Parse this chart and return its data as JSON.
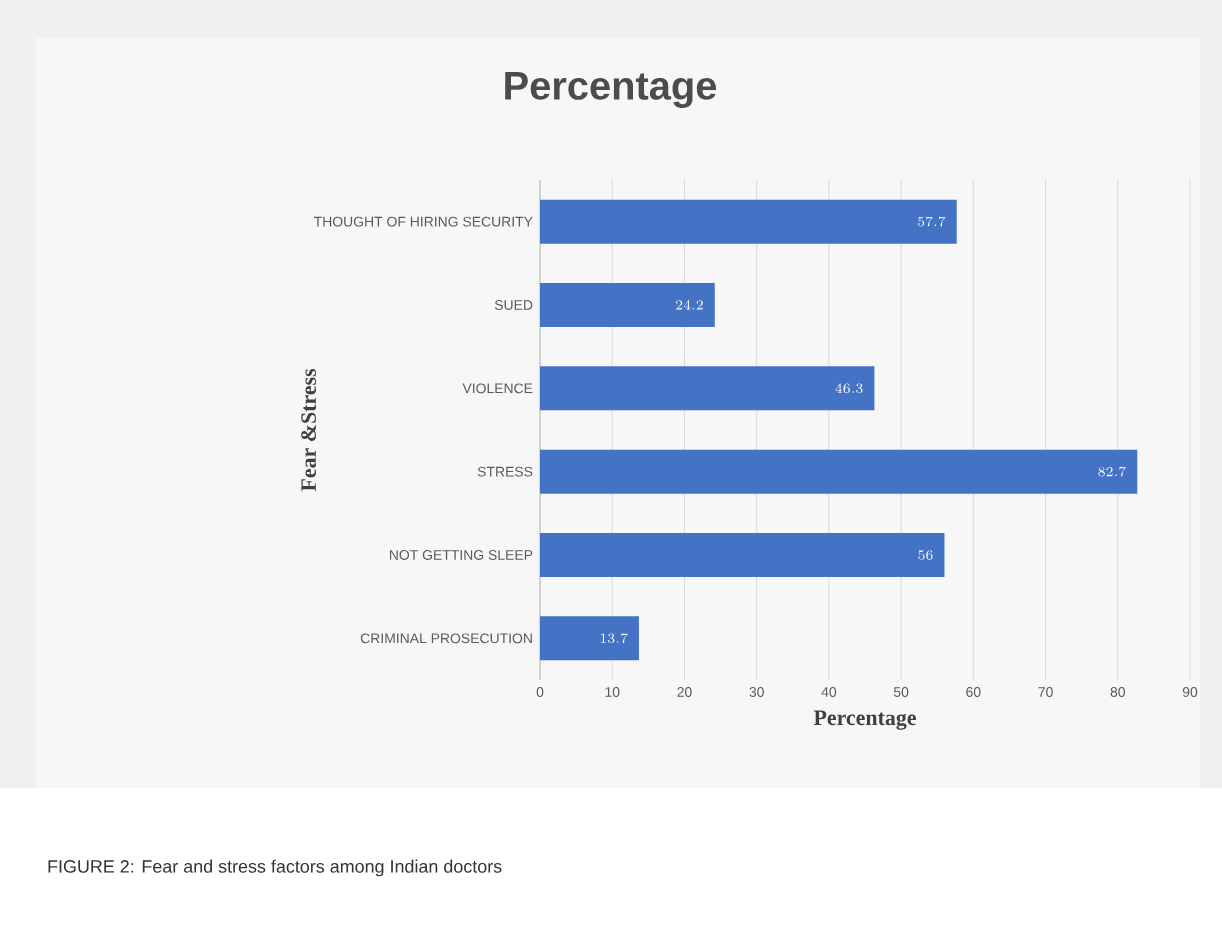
{
  "chart_data": {
    "type": "bar",
    "orientation": "horizontal",
    "title": "Percentage",
    "xlabel": "Percentage",
    "ylabel": "Fear &Stress",
    "categories": [
      "THOUGHT OF HIRING SECURITY",
      "SUED",
      "VIOLENCE",
      "STRESS",
      "NOT GETTING SLEEP",
      "CRIMINAL PROSECUTION"
    ],
    "values": [
      57.7,
      24.2,
      46.3,
      82.7,
      56,
      13.7
    ],
    "color": "#4472c4",
    "xlim": [
      0,
      90
    ],
    "xticks": [
      0,
      10,
      20,
      30,
      40,
      50,
      60,
      70,
      80,
      90
    ],
    "grid": "x",
    "data_labels": true,
    "annotations": [
      "FIGURE 2: Fear and stress factors among Indian doctors"
    ]
  }
}
